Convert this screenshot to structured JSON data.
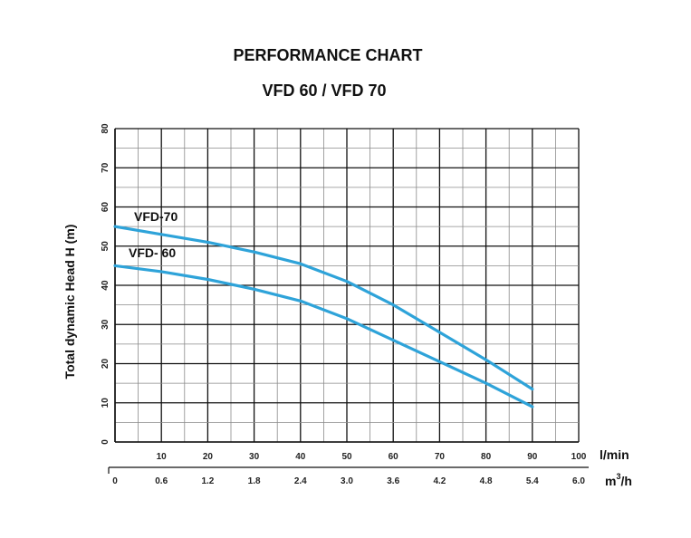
{
  "chart_data": {
    "type": "line",
    "title": "PERFORMANCE CHART",
    "subtitle": "VFD 60  / VFD 70",
    "ylabel": "Total dynamic Head H (m)",
    "xlabel": "",
    "xunit": "l/min",
    "xunit2_base": "m",
    "xunit2_exp": "3",
    "xunit2_tail": "/h",
    "xlim": [
      0,
      100
    ],
    "ylim": [
      0,
      80
    ],
    "grid": true,
    "x_ticks": [
      "10",
      "20",
      "30",
      "40",
      "50",
      "60",
      "70",
      "80",
      "90",
      "100"
    ],
    "x2_ticks": [
      "0",
      "0.6",
      "1.2",
      "1.8",
      "2.4",
      "3.0",
      "3.6",
      "4.2",
      "4.8",
      "5.4",
      "6.0"
    ],
    "y_ticks": [
      "0",
      "10",
      "20",
      "30",
      "40",
      "50",
      "60",
      "70",
      "80"
    ],
    "line_color": "#2ea3d9",
    "series": [
      {
        "name": "VFD-70",
        "x": [
          0,
          10,
          20,
          30,
          40,
          50,
          60,
          70,
          80,
          90
        ],
        "y": [
          55,
          53,
          51,
          48.5,
          45.5,
          41,
          35,
          28,
          21,
          13.5
        ]
      },
      {
        "name": "VFD- 60",
        "x": [
          0,
          10,
          20,
          30,
          40,
          50,
          60,
          70,
          80,
          90
        ],
        "y": [
          45,
          43.5,
          41.5,
          39,
          36,
          31.5,
          26,
          20.5,
          15,
          9
        ]
      }
    ]
  }
}
